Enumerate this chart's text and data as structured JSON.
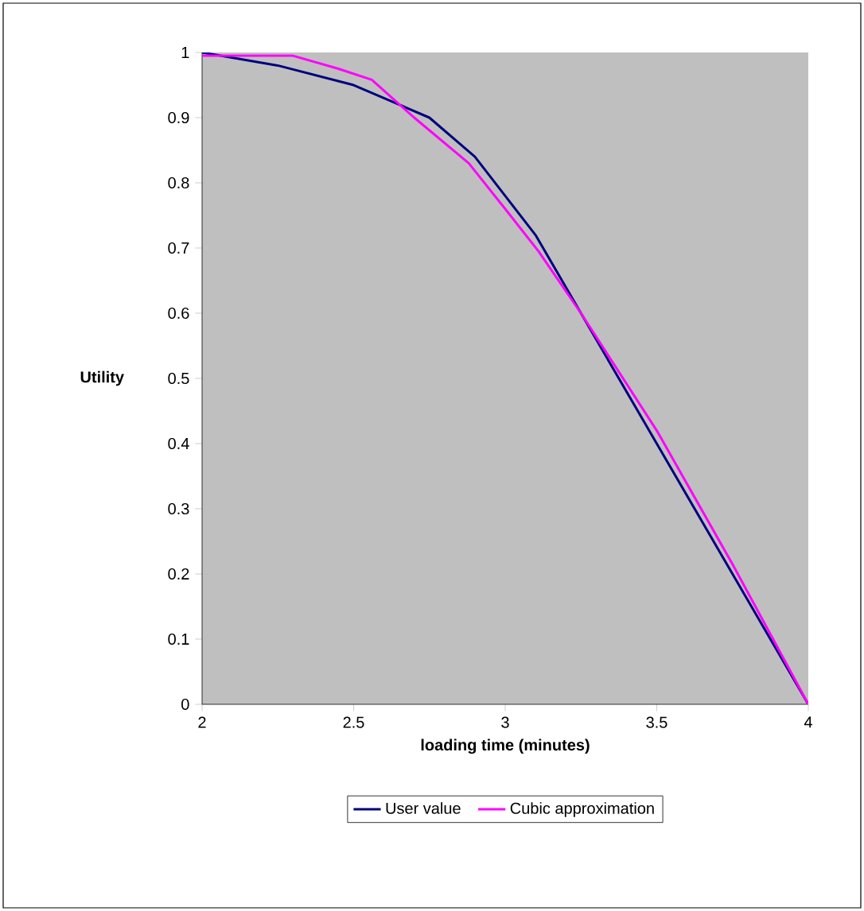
{
  "chart_data": {
    "type": "line",
    "xlabel": "loading time (minutes)",
    "ylabel": "Utility",
    "xlim": [
      2,
      4
    ],
    "ylim": [
      0,
      1
    ],
    "xticks": [
      2,
      2.5,
      3,
      3.5,
      4
    ],
    "yticks": [
      0,
      0.1,
      0.2,
      0.3,
      0.4,
      0.5,
      0.6,
      0.7,
      0.8,
      0.9,
      1
    ],
    "grid": false,
    "legend": "bottom",
    "marker": "none",
    "line_style": "solid",
    "series": [
      {
        "name": "User value",
        "color": "#000080",
        "x": [
          2,
          2.25,
          2.5,
          2.75,
          2.9,
          3,
          3.1,
          3.25,
          3.5,
          3.75,
          4
        ],
        "values": [
          1,
          0.98,
          0.95,
          0.9,
          0.84,
          0.78,
          0.72,
          0.6,
          0.4,
          0.2,
          0
        ]
      },
      {
        "name": "Cubic approximation",
        "color": "#ff00ff",
        "x": [
          2,
          2.3,
          2.45,
          2.56,
          2.7,
          2.88,
          3,
          3.11,
          3.25,
          3.5,
          3.75,
          4
        ],
        "values": [
          0.995,
          0.995,
          0.975,
          0.958,
          0.9,
          0.83,
          0.76,
          0.695,
          0.6,
          0.42,
          0.215,
          0
        ]
      }
    ]
  }
}
